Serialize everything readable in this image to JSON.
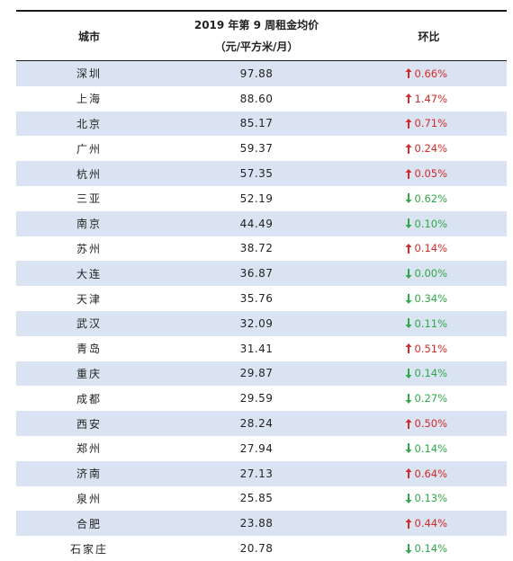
{
  "header": {
    "city": "城市",
    "price_line1": "2019 年第 9 周租金均价",
    "price_line2": "（元/平方米/月）",
    "mom": "环比"
  },
  "colors": {
    "up": "#d42a2a",
    "down": "#2fa84a",
    "shade": "#dae3f1"
  },
  "rows": [
    {
      "city": "深圳",
      "price": "97.88",
      "dir": "up",
      "mom": "0.66%"
    },
    {
      "city": "上海",
      "price": "88.60",
      "dir": "up",
      "mom": "1.47%"
    },
    {
      "city": "北京",
      "price": "85.17",
      "dir": "up",
      "mom": "0.71%"
    },
    {
      "city": "广州",
      "price": "59.37",
      "dir": "up",
      "mom": "0.24%"
    },
    {
      "city": "杭州",
      "price": "57.35",
      "dir": "up",
      "mom": "0.05%"
    },
    {
      "city": "三亚",
      "price": "52.19",
      "dir": "down",
      "mom": "0.62%"
    },
    {
      "city": "南京",
      "price": "44.49",
      "dir": "down",
      "mom": "0.10%"
    },
    {
      "city": "苏州",
      "price": "38.72",
      "dir": "up",
      "mom": "0.14%"
    },
    {
      "city": "大连",
      "price": "36.87",
      "dir": "down",
      "mom": "0.00%"
    },
    {
      "city": "天津",
      "price": "35.76",
      "dir": "down",
      "mom": "0.34%"
    },
    {
      "city": "武汉",
      "price": "32.09",
      "dir": "down",
      "mom": "0.11%"
    },
    {
      "city": "青岛",
      "price": "31.41",
      "dir": "up",
      "mom": "0.51%"
    },
    {
      "city": "重庆",
      "price": "29.87",
      "dir": "down",
      "mom": "0.14%"
    },
    {
      "city": "成都",
      "price": "29.59",
      "dir": "down",
      "mom": "0.27%"
    },
    {
      "city": "西安",
      "price": "28.24",
      "dir": "up",
      "mom": "0.50%"
    },
    {
      "city": "郑州",
      "price": "27.94",
      "dir": "down",
      "mom": "0.14%"
    },
    {
      "city": "济南",
      "price": "27.13",
      "dir": "up",
      "mom": "0.64%"
    },
    {
      "city": "泉州",
      "price": "25.85",
      "dir": "down",
      "mom": "0.13%"
    },
    {
      "city": "合肥",
      "price": "23.88",
      "dir": "up",
      "mom": "0.44%"
    },
    {
      "city": "石家庄",
      "price": "20.78",
      "dir": "down",
      "mom": "0.14%"
    }
  ]
}
